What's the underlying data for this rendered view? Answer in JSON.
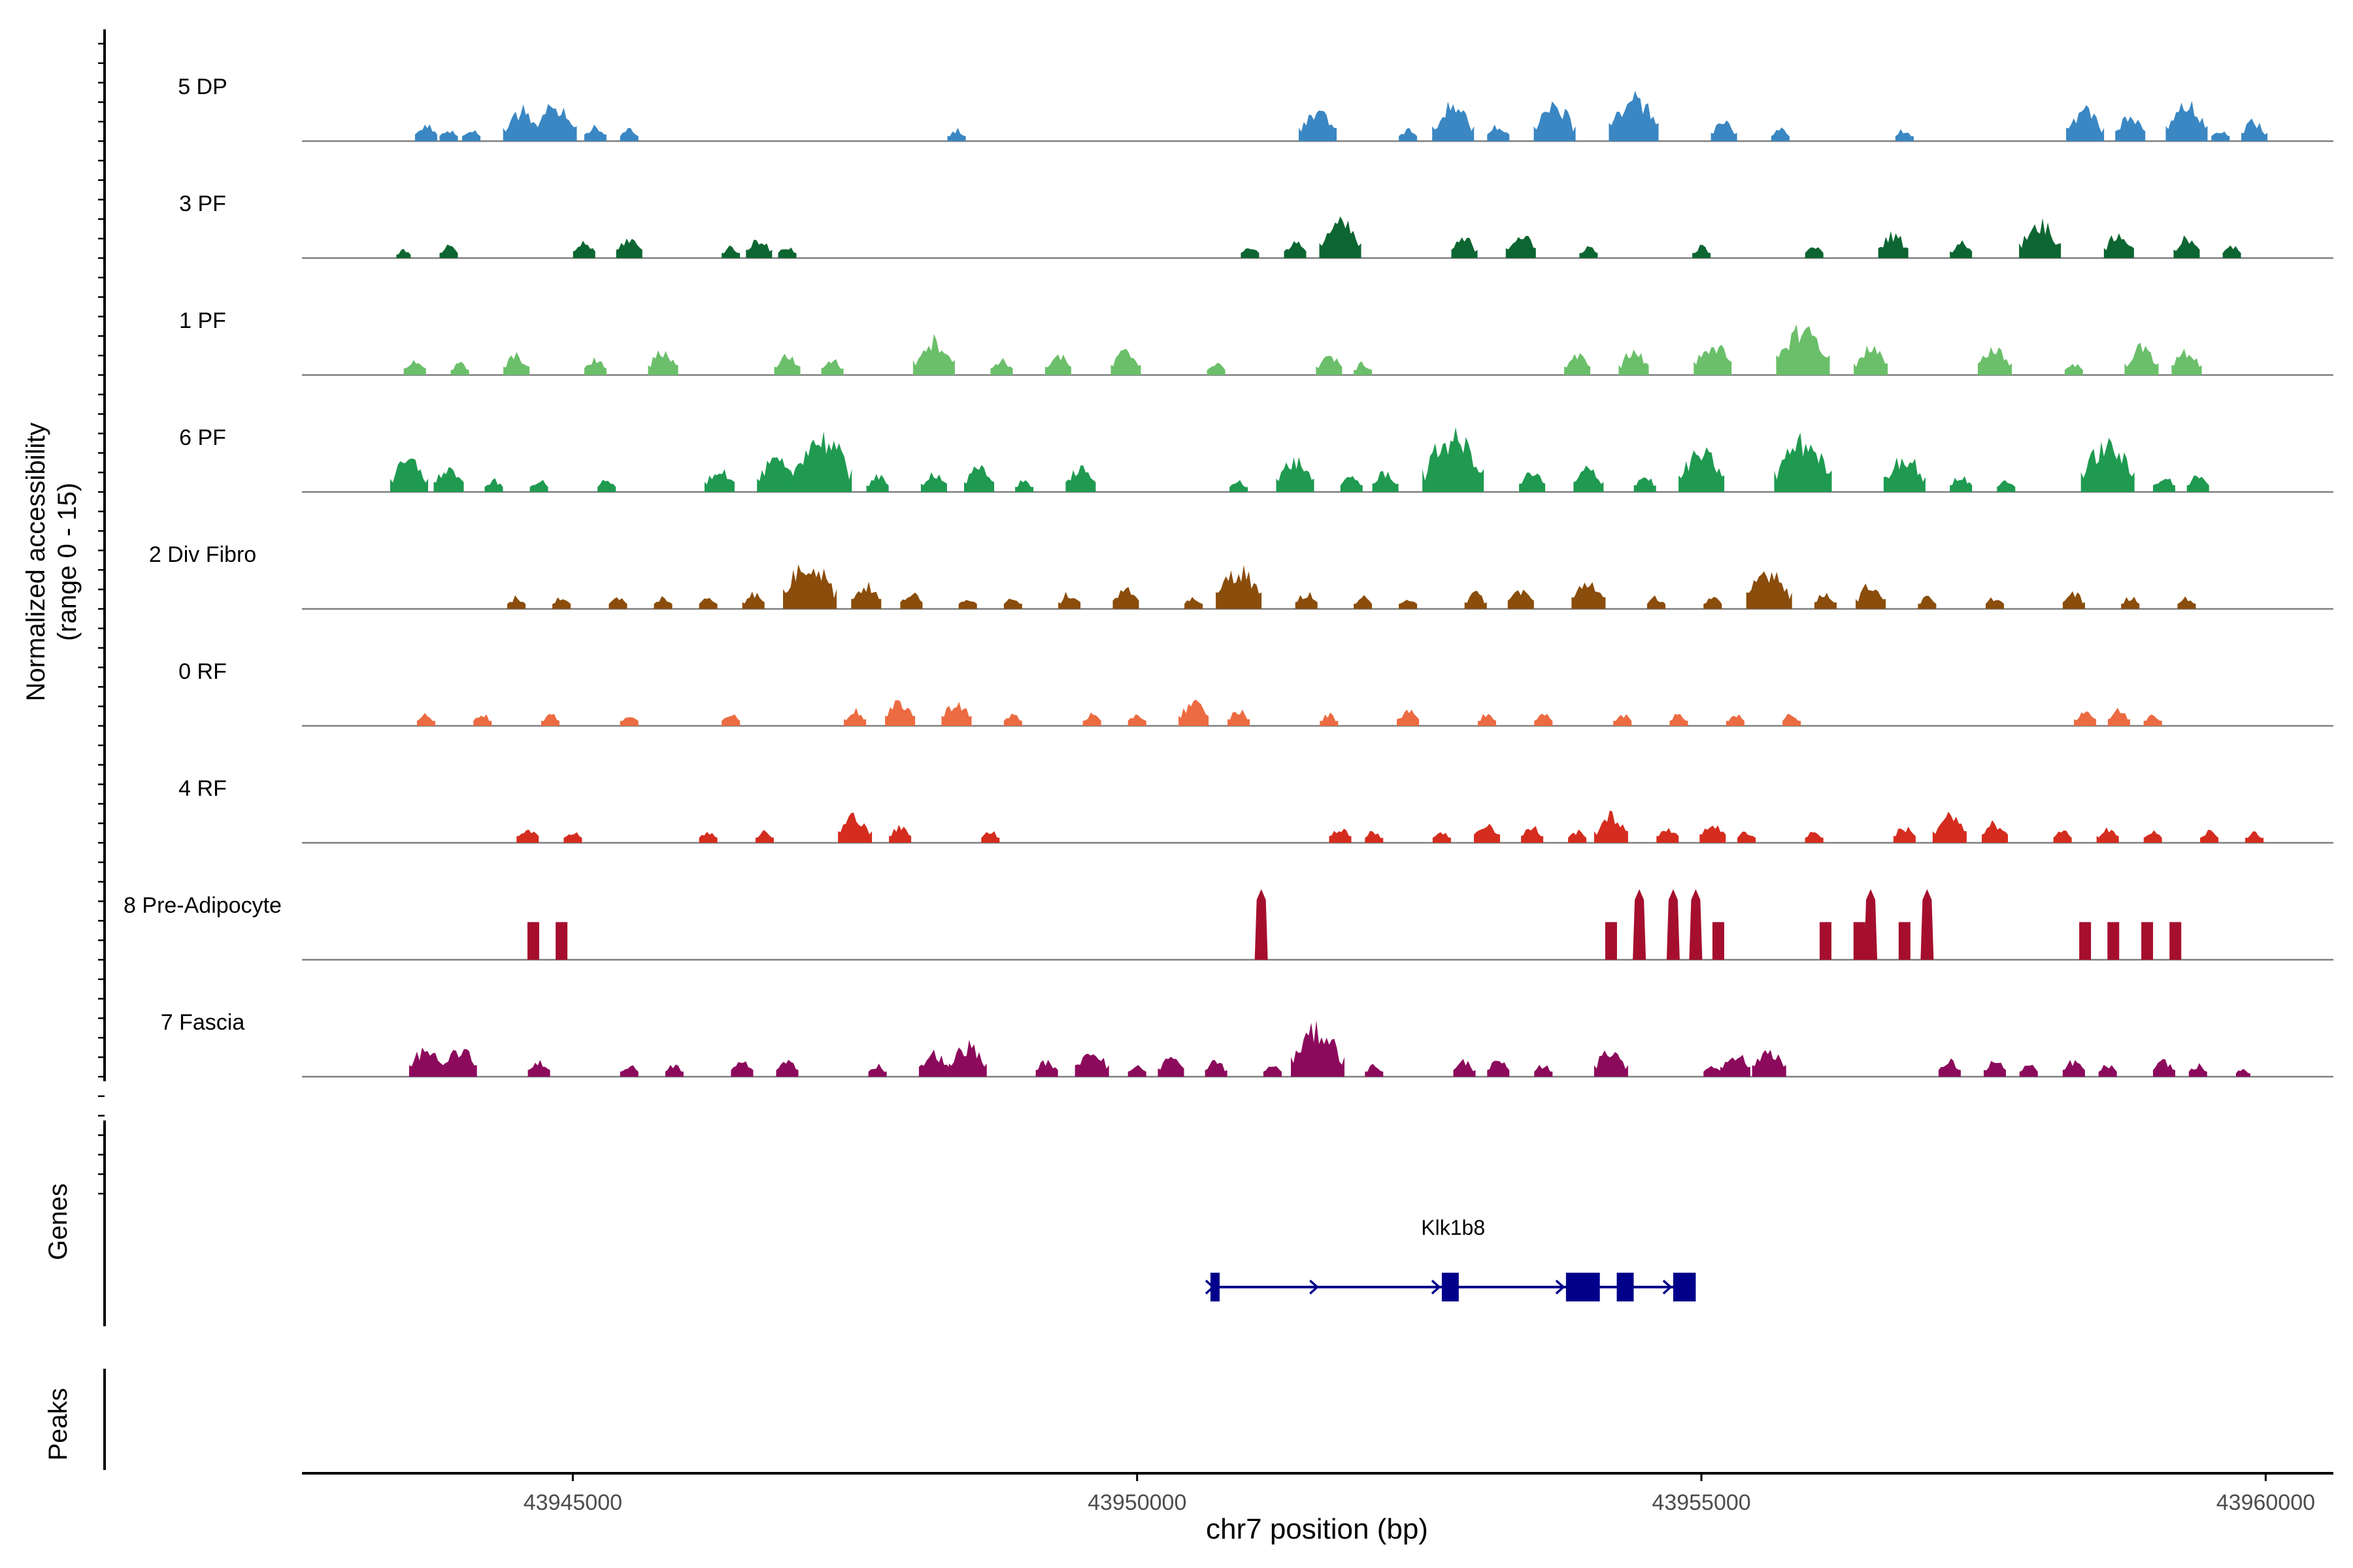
{
  "chart_data": {
    "type": "area",
    "y_axis_label_line1": "Normalized accessibility",
    "y_axis_label_line2": "(range 0 - 15)",
    "y_range": [
      0,
      15
    ],
    "x_label": "chr7 position (bp)",
    "x_range": [
      43942600,
      43960600
    ],
    "x_ticks": [
      43945000,
      43950000,
      43955000,
      43960000
    ],
    "x_tick_labels": [
      "43945000",
      "43950000",
      "43955000",
      "43960000"
    ],
    "series": [
      {
        "name": "5 DP",
        "color": "#3a87c3",
        "peaks": [
          [
            43943700,
            4
          ],
          [
            43943900,
            3
          ],
          [
            43944100,
            3
          ],
          [
            43944550,
            8
          ],
          [
            43944850,
            9
          ],
          [
            43945200,
            4
          ],
          [
            43945500,
            3
          ],
          [
            43948400,
            3
          ],
          [
            43951600,
            8
          ],
          [
            43952400,
            3
          ],
          [
            43952800,
            9
          ],
          [
            43953200,
            4
          ],
          [
            43953700,
            9
          ],
          [
            43954400,
            11
          ],
          [
            43955200,
            5
          ],
          [
            43955700,
            3
          ],
          [
            43956800,
            3
          ],
          [
            43958400,
            8
          ],
          [
            43958800,
            6
          ],
          [
            43959300,
            9
          ],
          [
            43959600,
            3
          ],
          [
            43959900,
            5
          ]
        ]
      },
      {
        "name": "3 PF",
        "color": "#0d6632",
        "peaks": [
          [
            43943500,
            2
          ],
          [
            43943900,
            3
          ],
          [
            43945100,
            4
          ],
          [
            43945500,
            5
          ],
          [
            43946400,
            3
          ],
          [
            43946650,
            5
          ],
          [
            43946900,
            3
          ],
          [
            43951000,
            3
          ],
          [
            43951400,
            4
          ],
          [
            43951800,
            9
          ],
          [
            43952900,
            5
          ],
          [
            43953400,
            6
          ],
          [
            43954000,
            3
          ],
          [
            43955000,
            3
          ],
          [
            43956000,
            3
          ],
          [
            43956700,
            6
          ],
          [
            43957300,
            4
          ],
          [
            43958000,
            9
          ],
          [
            43958700,
            6
          ],
          [
            43959300,
            5
          ],
          [
            43959700,
            3
          ]
        ]
      },
      {
        "name": "1 PF",
        "color": "#6bbf6a",
        "peaks": [
          [
            43943600,
            4
          ],
          [
            43944000,
            3
          ],
          [
            43944500,
            5
          ],
          [
            43945200,
            4
          ],
          [
            43945800,
            6
          ],
          [
            43946900,
            5
          ],
          [
            43947300,
            4
          ],
          [
            43948200,
            9
          ],
          [
            43948800,
            4
          ],
          [
            43949300,
            5
          ],
          [
            43949900,
            6
          ],
          [
            43950700,
            3
          ],
          [
            43951700,
            5
          ],
          [
            43952000,
            3
          ],
          [
            43953900,
            5
          ],
          [
            43954400,
            6
          ],
          [
            43955100,
            8
          ],
          [
            43955900,
            12
          ],
          [
            43956500,
            7
          ],
          [
            43957600,
            7
          ],
          [
            43958300,
            3
          ],
          [
            43958900,
            7
          ],
          [
            43959300,
            6
          ]
        ]
      },
      {
        "name": "6 PF",
        "color": "#1f9a50",
        "peaks": [
          [
            43943550,
            8
          ],
          [
            43943900,
            6
          ],
          [
            43944300,
            3
          ],
          [
            43944700,
            3
          ],
          [
            43945300,
            3
          ],
          [
            43946300,
            6
          ],
          [
            43946800,
            8
          ],
          [
            43947200,
            14
          ],
          [
            43947700,
            4
          ],
          [
            43948200,
            5
          ],
          [
            43948600,
            6
          ],
          [
            43949000,
            3
          ],
          [
            43949500,
            6
          ],
          [
            43950900,
            3
          ],
          [
            43951400,
            8
          ],
          [
            43951900,
            4
          ],
          [
            43952200,
            5
          ],
          [
            43952800,
            14
          ],
          [
            43953500,
            5
          ],
          [
            43954000,
            6
          ],
          [
            43954500,
            4
          ],
          [
            43955000,
            10
          ],
          [
            43955900,
            13
          ],
          [
            43956800,
            9
          ],
          [
            43957300,
            4
          ],
          [
            43957700,
            3
          ],
          [
            43958600,
            12
          ],
          [
            43959100,
            4
          ],
          [
            43959400,
            4
          ]
        ]
      },
      {
        "name": "2 Div Fibro",
        "color": "#8a4d0c",
        "peaks": [
          [
            43944500,
            3
          ],
          [
            43944900,
            3
          ],
          [
            43945400,
            3
          ],
          [
            43945800,
            3
          ],
          [
            43946200,
            3
          ],
          [
            43946600,
            4
          ],
          [
            43947100,
            12
          ],
          [
            43947600,
            6
          ],
          [
            43948000,
            4
          ],
          [
            43948500,
            3
          ],
          [
            43948900,
            3
          ],
          [
            43949400,
            4
          ],
          [
            43949900,
            5
          ],
          [
            43950500,
            3
          ],
          [
            43950900,
            10
          ],
          [
            43951500,
            4
          ],
          [
            43952000,
            3
          ],
          [
            43952400,
            3
          ],
          [
            43953000,
            4
          ],
          [
            43953400,
            5
          ],
          [
            43954000,
            7
          ],
          [
            43954600,
            3
          ],
          [
            43955100,
            3
          ],
          [
            43955600,
            10
          ],
          [
            43956100,
            4
          ],
          [
            43956500,
            6
          ],
          [
            43957000,
            3
          ],
          [
            43957600,
            3
          ],
          [
            43958300,
            4
          ],
          [
            43958800,
            3
          ],
          [
            43959300,
            3
          ]
        ]
      },
      {
        "name": "0 RF",
        "color": "#ec6b42",
        "peaks": [
          [
            43943700,
            3
          ],
          [
            43944200,
            3
          ],
          [
            43944800,
            3
          ],
          [
            43945500,
            3
          ],
          [
            43946400,
            3
          ],
          [
            43947500,
            4
          ],
          [
            43947900,
            6
          ],
          [
            43948400,
            6
          ],
          [
            43948900,
            3
          ],
          [
            43949600,
            3
          ],
          [
            43950000,
            3
          ],
          [
            43950500,
            6
          ],
          [
            43950900,
            4
          ],
          [
            43951700,
            3
          ],
          [
            43952400,
            4
          ],
          [
            43953100,
            3
          ],
          [
            43953600,
            3
          ],
          [
            43954300,
            3
          ],
          [
            43954800,
            3
          ],
          [
            43955300,
            3
          ],
          [
            43955800,
            3
          ],
          [
            43958400,
            4
          ],
          [
            43958700,
            4
          ],
          [
            43959000,
            3
          ]
        ]
      },
      {
        "name": "4 RF",
        "color": "#d42d1f",
        "peaks": [
          [
            43944600,
            4
          ],
          [
            43945000,
            3
          ],
          [
            43946200,
            3
          ],
          [
            43946700,
            3
          ],
          [
            43947500,
            7
          ],
          [
            43947900,
            4
          ],
          [
            43948700,
            3
          ],
          [
            43951800,
            4
          ],
          [
            43952100,
            3
          ],
          [
            43952700,
            3
          ],
          [
            43953100,
            5
          ],
          [
            43953500,
            4
          ],
          [
            43953900,
            3
          ],
          [
            43954200,
            7
          ],
          [
            43954700,
            4
          ],
          [
            43955100,
            5
          ],
          [
            43955400,
            3
          ],
          [
            43956000,
            3
          ],
          [
            43956800,
            4
          ],
          [
            43957200,
            7
          ],
          [
            43957600,
            5
          ],
          [
            43958200,
            3
          ],
          [
            43958600,
            4
          ],
          [
            43959000,
            3
          ],
          [
            43959500,
            3
          ],
          [
            43959900,
            3
          ]
        ]
      },
      {
        "name": "8 Pre-Adipocyte",
        "color": "#a50f2d",
        "style": "tall",
        "peaks": [
          [
            43944650,
            8
          ],
          [
            43944900,
            8
          ],
          [
            43951100,
            15
          ],
          [
            43954200,
            8
          ],
          [
            43954450,
            15
          ],
          [
            43954750,
            15
          ],
          [
            43954950,
            15
          ],
          [
            43955150,
            8
          ],
          [
            43956100,
            8
          ],
          [
            43956400,
            8
          ],
          [
            43956500,
            15
          ],
          [
            43956800,
            8
          ],
          [
            43957000,
            15
          ],
          [
            43958400,
            8
          ],
          [
            43958650,
            8
          ],
          [
            43958950,
            8
          ],
          [
            43959200,
            8
          ]
        ]
      },
      {
        "name": "7 Fascia",
        "color": "#8c0a5c",
        "peaks": [
          [
            43943700,
            7
          ],
          [
            43944000,
            7
          ],
          [
            43944700,
            4
          ],
          [
            43945500,
            3
          ],
          [
            43945900,
            3
          ],
          [
            43946500,
            4
          ],
          [
            43946900,
            4
          ],
          [
            43947700,
            3
          ],
          [
            43948200,
            6
          ],
          [
            43948500,
            8
          ],
          [
            43949200,
            4
          ],
          [
            43949600,
            7
          ],
          [
            43950000,
            3
          ],
          [
            43950300,
            5
          ],
          [
            43950700,
            4
          ],
          [
            43951200,
            3
          ],
          [
            43951600,
            12
          ],
          [
            43952100,
            3
          ],
          [
            43952900,
            4
          ],
          [
            43953200,
            4
          ],
          [
            43953600,
            3
          ],
          [
            43954200,
            7
          ],
          [
            43955100,
            3
          ],
          [
            43955300,
            6
          ],
          [
            43955600,
            7
          ],
          [
            43957200,
            4
          ],
          [
            43957600,
            4
          ],
          [
            43957900,
            3
          ],
          [
            43958300,
            4
          ],
          [
            43958600,
            3
          ],
          [
            43959100,
            4
          ],
          [
            43959400,
            3
          ],
          [
            43959800,
            2
          ]
        ]
      }
    ],
    "genes_track_label": "Genes",
    "peaks_track_label": "Peaks",
    "gene": {
      "name": "Klk1b8",
      "color": "#00008b",
      "strand": "+",
      "span": [
        43950650,
        43954950
      ],
      "exons": [
        [
          43950650,
          43950720
        ],
        [
          43952700,
          43952850
        ],
        [
          43953800,
          43954100
        ],
        [
          43954250,
          43954400
        ],
        [
          43954750,
          43954950
        ]
      ]
    }
  }
}
